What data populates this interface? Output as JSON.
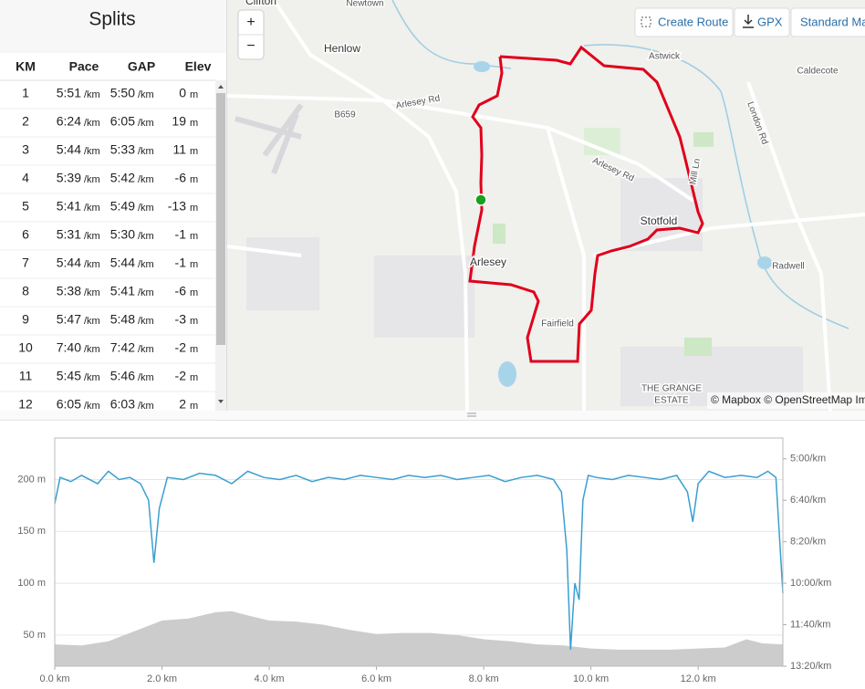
{
  "splits": {
    "title": "Splits",
    "headers": [
      "KM",
      "Pace",
      "GAP",
      "Elev"
    ],
    "pace_unit": "/km",
    "elev_unit": "m",
    "rows": [
      {
        "km": "1",
        "pace": "5:51",
        "gap": "5:50",
        "elev": "0"
      },
      {
        "km": "2",
        "pace": "6:24",
        "gap": "6:05",
        "elev": "19"
      },
      {
        "km": "3",
        "pace": "5:44",
        "gap": "5:33",
        "elev": "11"
      },
      {
        "km": "4",
        "pace": "5:39",
        "gap": "5:42",
        "elev": "-6"
      },
      {
        "km": "5",
        "pace": "5:41",
        "gap": "5:49",
        "elev": "-13"
      },
      {
        "km": "6",
        "pace": "5:31",
        "gap": "5:30",
        "elev": "-1"
      },
      {
        "km": "7",
        "pace": "5:44",
        "gap": "5:44",
        "elev": "-1"
      },
      {
        "km": "8",
        "pace": "5:38",
        "gap": "5:41",
        "elev": "-6"
      },
      {
        "km": "9",
        "pace": "5:47",
        "gap": "5:48",
        "elev": "-3"
      },
      {
        "km": "10",
        "pace": "7:40",
        "gap": "7:42",
        "elev": "-2"
      },
      {
        "km": "11",
        "pace": "5:45",
        "gap": "5:46",
        "elev": "-2"
      },
      {
        "km": "12",
        "pace": "6:05",
        "gap": "6:03",
        "elev": "2"
      }
    ]
  },
  "map": {
    "zoom_in": "+",
    "zoom_out": "−",
    "buttons": [
      "Create Route",
      "GPX",
      "Standard Map"
    ],
    "labels": [
      "Clifton",
      "Newtown",
      "Henlow",
      "Arlesey Rd",
      "B659",
      "Astwick",
      "Caldecote",
      "London Rd",
      "Mill Ln",
      "Arlesey Rd",
      "Stotfold",
      "Radwell",
      "Arlesey",
      "Fairfield",
      "THE GRANGE",
      "ESTATE"
    ],
    "attribution": "© Mapbox © OpenStreetMap Im"
  },
  "chart_data": {
    "type": "line",
    "xlim": [
      0,
      13.58
    ],
    "xticks": [
      {
        "value": 0,
        "label": "0.0 km"
      },
      {
        "value": 2,
        "label": "2.0 km"
      },
      {
        "value": 4,
        "label": "4.0 km"
      },
      {
        "value": 6,
        "label": "6.0 km"
      },
      {
        "value": 8,
        "label": "8.0 km"
      },
      {
        "value": 10,
        "label": "10.0 km"
      },
      {
        "value": 12,
        "label": "12.0 km"
      }
    ],
    "ylim": [
      20,
      240
    ],
    "yticks": [
      {
        "value": 50,
        "label": "50 m"
      },
      {
        "value": 100,
        "label": "100 m"
      },
      {
        "value": 150,
        "label": "150 m"
      },
      {
        "value": 200,
        "label": "200 m"
      }
    ],
    "y2lim": [
      800,
      250
    ],
    "y2ticks": [
      {
        "value": 300,
        "label": "5:00/km"
      },
      {
        "value": 400,
        "label": "6:40/km"
      },
      {
        "value": 500,
        "label": "8:20/km"
      },
      {
        "value": 600,
        "label": "10:00/km"
      },
      {
        "value": 700,
        "label": "11:40/km"
      },
      {
        "value": 800,
        "label": "13:20/km"
      }
    ],
    "grid": true,
    "series": [
      {
        "type": "area",
        "color": "#cccccc",
        "axis": "y",
        "x": [
          0,
          0.5,
          1,
          1.5,
          2,
          2.5,
          3,
          3.3,
          3.6,
          4,
          4.5,
          5,
          5.5,
          6,
          6.5,
          7,
          7.5,
          8,
          8.5,
          9,
          9.5,
          10,
          10.5,
          11,
          11.5,
          12,
          12.5,
          12.9,
          13.2,
          13.58
        ],
        "values": [
          41,
          40,
          44,
          54,
          64,
          66,
          72,
          73,
          69,
          64,
          63,
          60,
          55,
          51,
          52,
          52,
          50,
          46,
          44,
          41,
          40,
          37,
          36,
          36,
          36,
          37,
          38,
          46,
          42,
          41
        ]
      },
      {
        "type": "line",
        "color": "#3a9fd1",
        "axis": "y2",
        "x": [
          0,
          0.1,
          0.3,
          0.5,
          0.8,
          1.0,
          1.2,
          1.4,
          1.6,
          1.75,
          1.85,
          1.95,
          2.1,
          2.4,
          2.7,
          3.0,
          3.3,
          3.6,
          3.9,
          4.2,
          4.5,
          4.8,
          5.1,
          5.4,
          5.7,
          6.0,
          6.3,
          6.6,
          6.9,
          7.2,
          7.5,
          7.8,
          8.1,
          8.4,
          8.7,
          9.0,
          9.3,
          9.45,
          9.55,
          9.62,
          9.7,
          9.78,
          9.85,
          9.95,
          10.1,
          10.4,
          10.7,
          11.0,
          11.3,
          11.6,
          11.8,
          11.9,
          12.0,
          12.2,
          12.5,
          12.8,
          13.1,
          13.3,
          13.45,
          13.58
        ],
        "values": [
          408,
          345,
          355,
          340,
          360,
          330,
          350,
          345,
          360,
          400,
          551,
          420,
          345,
          350,
          335,
          340,
          360,
          330,
          345,
          350,
          340,
          355,
          345,
          350,
          340,
          345,
          350,
          340,
          345,
          340,
          350,
          345,
          340,
          355,
          345,
          340,
          350,
          380,
          520,
          760,
          600,
          640,
          400,
          340,
          345,
          350,
          340,
          345,
          350,
          340,
          380,
          452,
          360,
          330,
          345,
          340,
          345,
          330,
          345,
          624
        ]
      }
    ]
  }
}
